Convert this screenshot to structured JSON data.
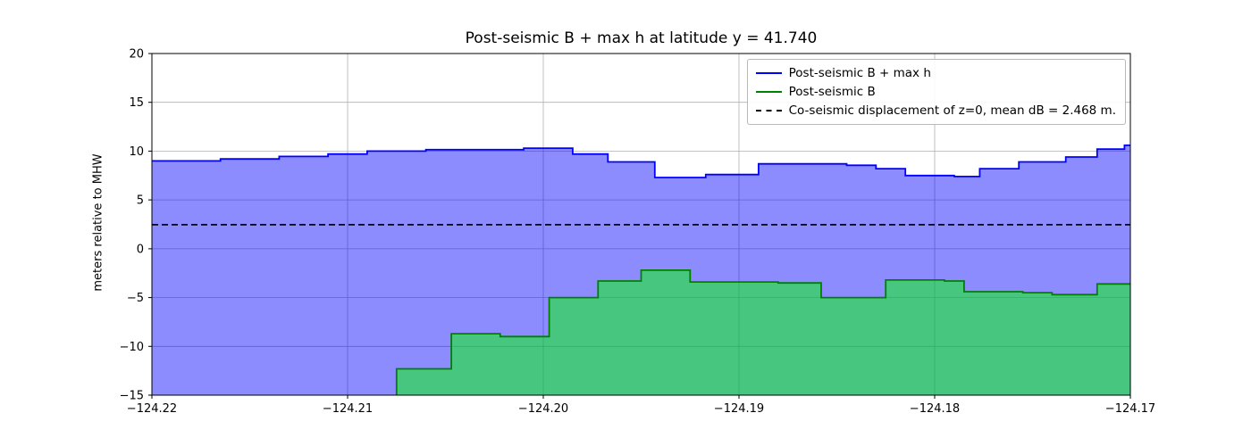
{
  "figure": {
    "title": "Post-seismic B + max h at latitude y = 41.740",
    "ylabel": "meters relative to MHW"
  },
  "chart_data": {
    "type": "area",
    "subtype": "steps-post",
    "title": "Post-seismic B + max h at latitude y = 41.740",
    "xlabel": "",
    "ylabel": "meters relative to MHW",
    "xlim": [
      -124.22,
      -124.17
    ],
    "ylim": [
      -15,
      20
    ],
    "grid": true,
    "legend_position": "upper right",
    "xtick_values": [
      -124.22,
      -124.21,
      -124.2,
      -124.19,
      -124.18,
      -124.17
    ],
    "xtick_labels": [
      "−124.22",
      "−124.21",
      "−124.20",
      "−124.19",
      "−124.18",
      "−124.17"
    ],
    "ytick_values": [
      -15,
      -10,
      -5,
      0,
      5,
      10,
      15,
      20
    ],
    "ytick_labels": [
      "−15",
      "−10",
      "−5",
      "0",
      "5",
      "10",
      "15",
      "20"
    ],
    "series": [
      {
        "name": "post-seismic-b-plus-max-h",
        "label": "Post-seismic B + max h",
        "color": "#0000ff",
        "fill": "rgba(0,0,255,0.45)",
        "x": [
          -124.22,
          -124.2165,
          -124.2135,
          -124.211,
          -124.209,
          -124.206,
          -124.201,
          -124.1985,
          -124.1967,
          -124.1943,
          -124.1917,
          -124.189,
          -124.1845,
          -124.183,
          -124.1815,
          -124.179,
          -124.1777,
          -124.1757,
          -124.1733,
          -124.1717,
          -124.1703
        ],
        "y": [
          9.0,
          9.2,
          9.45,
          9.7,
          10.0,
          10.15,
          10.3,
          9.7,
          8.9,
          7.3,
          7.6,
          8.7,
          8.55,
          8.2,
          7.5,
          7.4,
          8.2,
          8.9,
          9.4,
          10.2,
          10.6
        ]
      },
      {
        "name": "post-seismic-b",
        "label": "Post-seismic B",
        "color": "#008000",
        "fill": "rgba(0,255,0,0.5)",
        "x": [
          -124.22,
          -124.2075,
          -124.2047,
          -124.2022,
          -124.1997,
          -124.1972,
          -124.195,
          -124.1925,
          -124.188,
          -124.1858,
          -124.1825,
          -124.1795,
          -124.1785,
          -124.1755,
          -124.174,
          -124.1717
        ],
        "y": [
          -16.5,
          -12.3,
          -8.7,
          -9.0,
          -5.0,
          -3.3,
          -2.2,
          -3.4,
          -3.5,
          -5.0,
          -3.2,
          -3.3,
          -4.4,
          -4.5,
          -4.7,
          -3.6
        ]
      }
    ],
    "mean_line": {
      "name": "co-seismic-displacement",
      "label": "Co-seismic displacement of z=0, mean dB = 2.468 m.",
      "value": 2.468,
      "color": "#000000",
      "style": "dashed"
    }
  }
}
